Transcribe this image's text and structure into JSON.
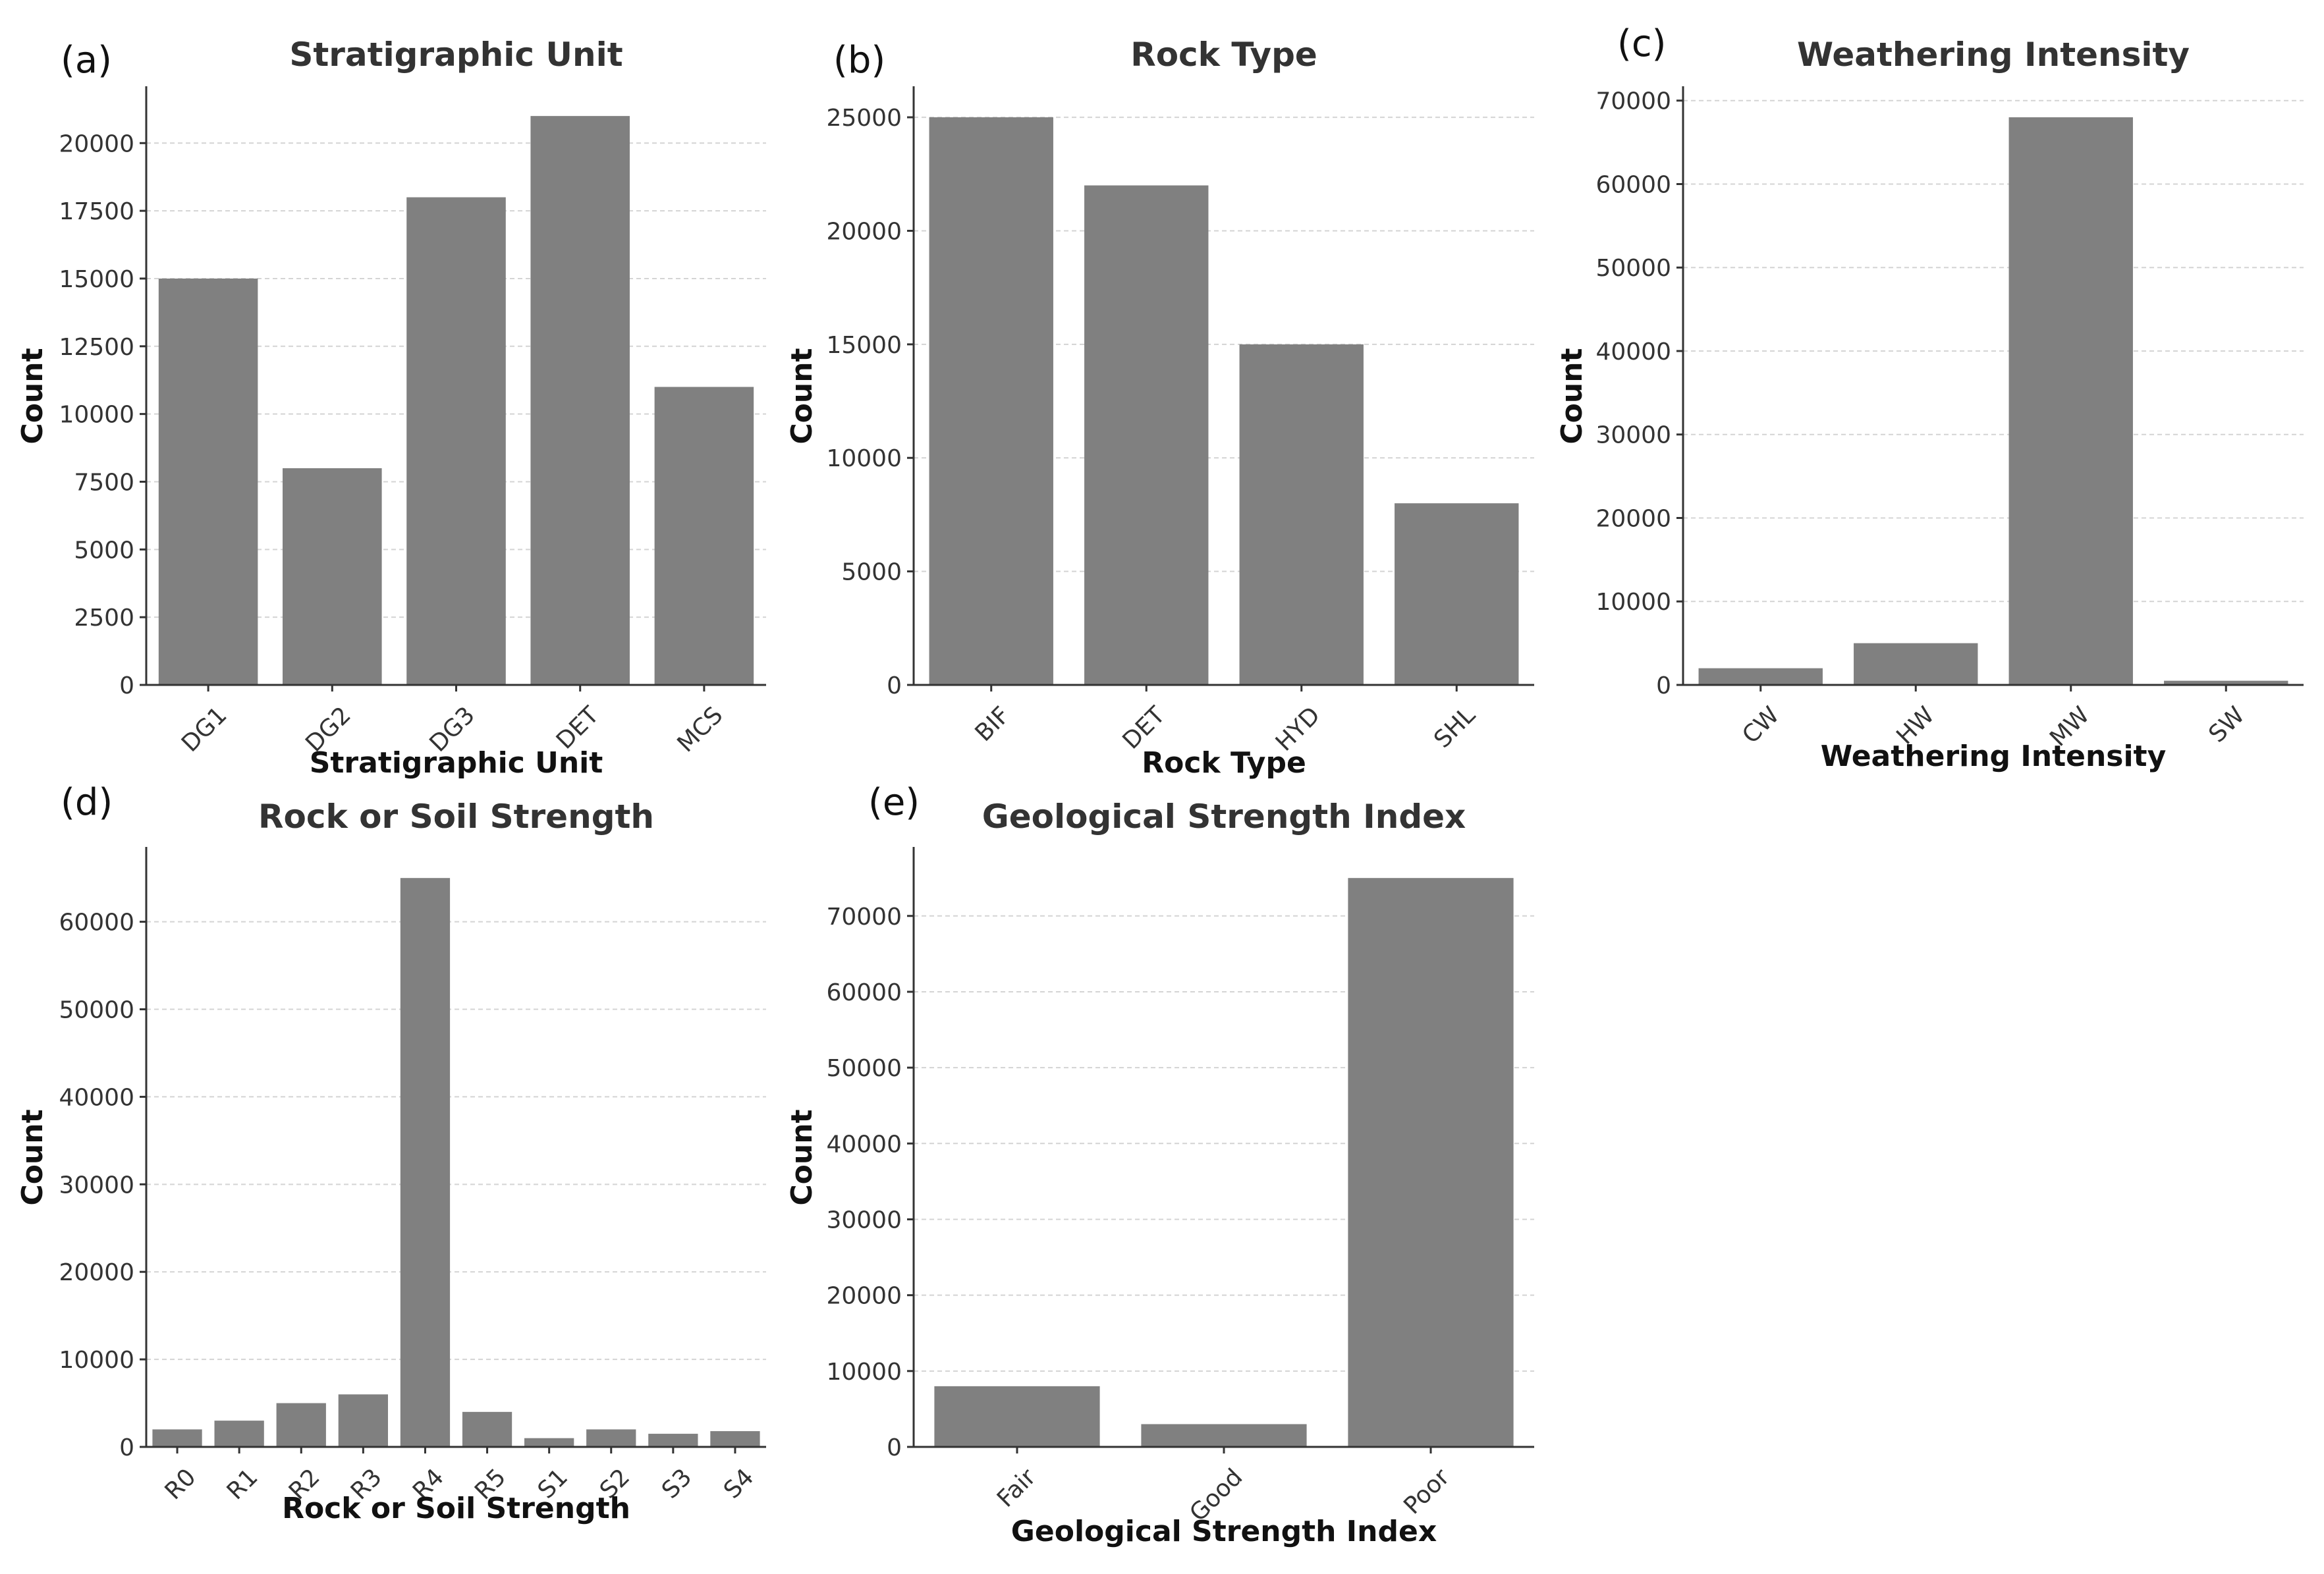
{
  "chart_data": [
    {
      "panel": "(a)",
      "type": "bar",
      "title": "Stratigraphic Unit",
      "xlabel": "Stratigraphic Unit",
      "ylabel": "Count",
      "categories": [
        "DG1",
        "DG2",
        "DG3",
        "DET",
        "MCS"
      ],
      "values": [
        15000,
        8000,
        18000,
        21000,
        11000
      ],
      "ylim": [
        0,
        22000
      ],
      "yticks": [
        0,
        2500,
        5000,
        7500,
        10000,
        12500,
        15000,
        17500,
        20000
      ],
      "ytick_labels": [
        "0",
        "2500",
        "5000",
        "7500",
        "10000",
        "12500",
        "15000",
        "17500",
        "20000"
      ],
      "grid": true,
      "bar_color": "#808080"
    },
    {
      "panel": "(b)",
      "type": "bar",
      "title": "Rock Type",
      "xlabel": "Rock Type",
      "ylabel": "Count",
      "categories": [
        "BIF",
        "DET",
        "HYD",
        "SHL"
      ],
      "values": [
        25000,
        22000,
        15000,
        8000
      ],
      "ylim": [
        0,
        26250
      ],
      "yticks": [
        0,
        5000,
        10000,
        15000,
        20000,
        25000
      ],
      "ytick_labels": [
        "0",
        "5000",
        "10000",
        "15000",
        "20000",
        "25000"
      ],
      "grid": true,
      "bar_color": "#808080"
    },
    {
      "panel": "(c)",
      "type": "bar",
      "title": "Weathering Intensity",
      "xlabel": "Weathering Intensity",
      "ylabel": "Count",
      "categories": [
        "CW",
        "HW",
        "MW",
        "SW"
      ],
      "values": [
        2000,
        5000,
        68000,
        500
      ],
      "ylim": [
        0,
        71400
      ],
      "yticks": [
        0,
        10000,
        20000,
        30000,
        40000,
        50000,
        60000,
        70000
      ],
      "ytick_labels": [
        "0",
        "10000",
        "20000",
        "30000",
        "40000",
        "50000",
        "60000",
        "70000"
      ],
      "grid": true,
      "bar_color": "#808080"
    },
    {
      "panel": "(d)",
      "type": "bar",
      "title": "Rock or Soil Strength",
      "xlabel": "Rock or Soil Strength",
      "ylabel": "Count",
      "categories": [
        "R0",
        "R1",
        "R2",
        "R3",
        "R4",
        "R5",
        "S1",
        "S2",
        "S3",
        "S4"
      ],
      "values": [
        2000,
        3000,
        5000,
        6000,
        65000,
        4000,
        1000,
        2000,
        1500,
        1800
      ],
      "ylim": [
        0,
        68250
      ],
      "yticks": [
        0,
        10000,
        20000,
        30000,
        40000,
        50000,
        60000
      ],
      "ytick_labels": [
        "0",
        "10000",
        "20000",
        "30000",
        "40000",
        "50000",
        "60000"
      ],
      "grid": true,
      "bar_color": "#808080"
    },
    {
      "panel": "(e)",
      "type": "bar",
      "title": "Geological Strength Index",
      "xlabel": "Geological Strength Index",
      "ylabel": "Count",
      "categories": [
        "Fair",
        "Good",
        "Poor"
      ],
      "values": [
        8000,
        3000,
        75000
      ],
      "ylim": [
        0,
        78750
      ],
      "yticks": [
        0,
        10000,
        20000,
        30000,
        40000,
        50000,
        60000,
        70000
      ],
      "ytick_labels": [
        "0",
        "10000",
        "20000",
        "30000",
        "40000",
        "50000",
        "60000",
        "70000"
      ],
      "grid": true,
      "bar_color": "#808080"
    }
  ]
}
